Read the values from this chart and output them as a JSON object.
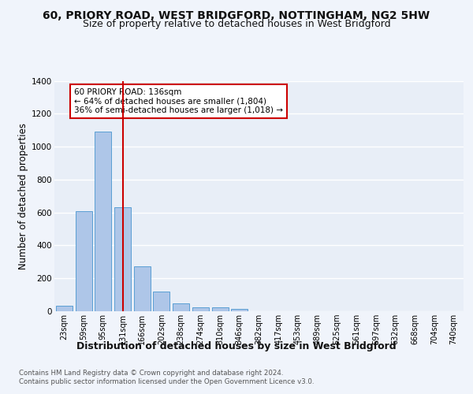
{
  "title_line1": "60, PRIORY ROAD, WEST BRIDGFORD, NOTTINGHAM, NG2 5HW",
  "title_line2": "Size of property relative to detached houses in West Bridgford",
  "xlabel": "Distribution of detached houses by size in West Bridgford",
  "ylabel": "Number of detached properties",
  "footer_line1": "Contains HM Land Registry data © Crown copyright and database right 2024.",
  "footer_line2": "Contains public sector information licensed under the Open Government Licence v3.0.",
  "bar_labels": [
    "23sqm",
    "59sqm",
    "95sqm",
    "131sqm",
    "166sqm",
    "202sqm",
    "238sqm",
    "274sqm",
    "310sqm",
    "346sqm",
    "382sqm",
    "417sqm",
    "453sqm",
    "489sqm",
    "525sqm",
    "561sqm",
    "597sqm",
    "632sqm",
    "668sqm",
    "704sqm",
    "740sqm"
  ],
  "bar_values": [
    32,
    610,
    1090,
    630,
    275,
    120,
    48,
    22,
    22,
    14,
    0,
    0,
    0,
    0,
    0,
    0,
    0,
    0,
    0,
    0,
    0
  ],
  "bar_color": "#aec6e8",
  "bar_edge_color": "#5a9fd4",
  "vline_x": 3,
  "vline_color": "#cc0000",
  "annotation_text": "60 PRIORY ROAD: 136sqm\n← 64% of detached houses are smaller (1,804)\n36% of semi-detached houses are larger (1,018) →",
  "annotation_box_color": "#ffffff",
  "annotation_box_edge": "#cc0000",
  "ylim": [
    0,
    1400
  ],
  "yticks": [
    0,
    200,
    400,
    600,
    800,
    1000,
    1200,
    1400
  ],
  "background_color": "#f0f4fb",
  "plot_bg_color": "#e8eef7",
  "grid_color": "#ffffff",
  "title_fontsize": 10,
  "subtitle_fontsize": 9,
  "tick_fontsize": 7.5,
  "ylabel_fontsize": 8.5,
  "xlabel_fontsize": 9
}
